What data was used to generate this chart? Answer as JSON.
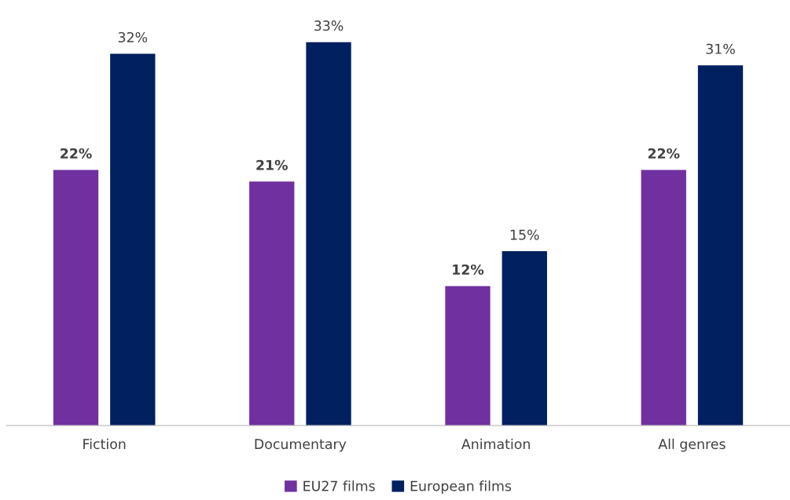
{
  "chart_data": {
    "type": "bar",
    "categories": [
      "Fiction",
      "Documentary",
      "Animation",
      "All genres"
    ],
    "series": [
      {
        "name": "EU27 films",
        "color": "#7030a0",
        "values": [
          22,
          21,
          12,
          22
        ],
        "value_labels": [
          "22%",
          "21%",
          "12%",
          "22%"
        ]
      },
      {
        "name": "European films",
        "color": "#002060",
        "values": [
          32,
          33,
          15,
          31
        ],
        "value_labels": [
          "32%",
          "33%",
          "15%",
          "31%"
        ]
      }
    ],
    "tick_labels": "x",
    "grid": false,
    "legend": "bottom"
  }
}
